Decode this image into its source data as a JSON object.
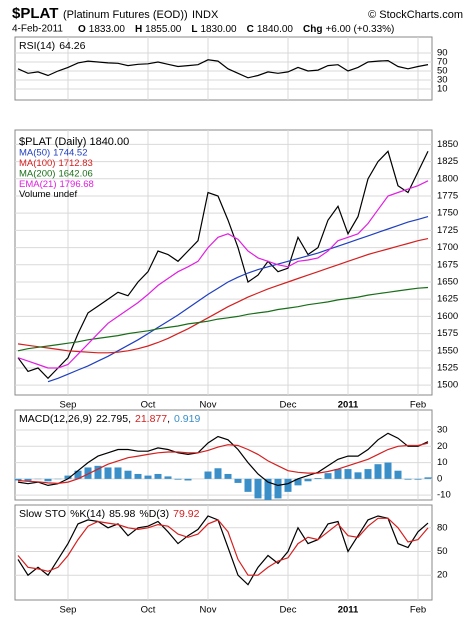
{
  "header": {
    "title": "$PLAT",
    "subtitle": "(Platinum Futures (EOD))",
    "exchange": "INDX",
    "copyright": "© StockCharts.com",
    "date": "4-Feb-2011",
    "quote": [
      {
        "label": "O",
        "value": "1833.00"
      },
      {
        "label": "H",
        "value": "1855.00"
      },
      {
        "label": "L",
        "value": "1830.00"
      },
      {
        "label": "C",
        "value": "1840.00"
      },
      {
        "label": "Chg",
        "value": "+6.00 (+0.33%)"
      }
    ]
  },
  "chart_data": [
    {
      "type": "line",
      "ylim": [
        0,
        100
      ],
      "yticks": [
        10,
        30,
        50,
        70,
        90
      ],
      "grid": true,
      "series": [
        {
          "name": "RSI(14)",
          "legend_label": "64.26",
          "color": "#000000",
          "values": [
            55,
            45,
            48,
            40,
            50,
            58,
            68,
            72,
            70,
            68,
            67,
            62,
            65,
            66,
            70,
            65,
            60,
            62,
            64,
            75,
            72,
            55,
            45,
            35,
            40,
            48,
            45,
            48,
            58,
            50,
            52,
            62,
            64,
            50,
            58,
            70,
            72,
            73,
            60,
            55,
            60,
            64.26
          ]
        }
      ]
    },
    {
      "type": "line",
      "ylim": [
        1485,
        1868
      ],
      "yticks": [
        1500,
        1525,
        1550,
        1575,
        1600,
        1625,
        1650,
        1675,
        1700,
        1725,
        1750,
        1775,
        1800,
        1825,
        1850
      ],
      "grid": true,
      "categories": [
        null,
        null,
        null,
        null,
        null,
        "Sep",
        null,
        null,
        null,
        null,
        null,
        null,
        null,
        "Oct",
        null,
        null,
        null,
        null,
        null,
        "Nov",
        null,
        null,
        null,
        null,
        null,
        null,
        null,
        "Dec",
        null,
        null,
        null,
        null,
        null,
        "2011",
        null,
        null,
        null,
        null,
        null,
        null,
        "Feb",
        null
      ],
      "annotation": "Volume undef",
      "series": [
        {
          "name": "$PLAT (Daily)",
          "legend_label": "1840.00",
          "color": "#000000",
          "values": [
            1540,
            1520,
            1525,
            1510,
            1525,
            1540,
            1575,
            1605,
            1615,
            1625,
            1635,
            1630,
            1650,
            1665,
            1695,
            1690,
            1680,
            1695,
            1710,
            1780,
            1775,
            1740,
            1700,
            1650,
            1660,
            1680,
            1665,
            1670,
            1715,
            1690,
            1700,
            1740,
            1760,
            1720,
            1745,
            1800,
            1825,
            1840,
            1790,
            1780,
            1810,
            1840
          ]
        },
        {
          "name": "MA(50)",
          "legend_label": "1744.52",
          "color": "#1f3fbf",
          "values": [
            null,
            null,
            null,
            1505,
            1510,
            1516,
            1522,
            1528,
            1535,
            1542,
            1550,
            1558,
            1566,
            1575,
            1584,
            1593,
            1602,
            1612,
            1622,
            1632,
            1641,
            1650,
            1657,
            1663,
            1668,
            1672,
            1676,
            1680,
            1684,
            1688,
            1692,
            1697,
            1702,
            1707,
            1712,
            1717,
            1722,
            1727,
            1732,
            1737,
            1741,
            1745
          ]
        },
        {
          "name": "MA(100)",
          "legend_label": "1712.83",
          "color": "#d42020",
          "values": [
            1560,
            1558,
            1556,
            1554,
            1552,
            1550,
            1549,
            1548,
            1547,
            1547,
            1548,
            1550,
            1553,
            1557,
            1562,
            1568,
            1575,
            1582,
            1590,
            1598,
            1606,
            1614,
            1621,
            1628,
            1634,
            1640,
            1645,
            1650,
            1655,
            1660,
            1665,
            1670,
            1675,
            1680,
            1685,
            1690,
            1694,
            1698,
            1702,
            1706,
            1710,
            1713
          ]
        },
        {
          "name": "MA(200)",
          "legend_label": "1642.06",
          "color": "#1a6e1a",
          "values": [
            1550,
            1553,
            1555,
            1557,
            1559,
            1561,
            1563,
            1566,
            1568,
            1570,
            1572,
            1575,
            1577,
            1579,
            1582,
            1584,
            1586,
            1589,
            1591,
            1593,
            1596,
            1598,
            1600,
            1603,
            1605,
            1607,
            1610,
            1612,
            1614,
            1617,
            1619,
            1621,
            1624,
            1626,
            1628,
            1631,
            1633,
            1635,
            1637,
            1639,
            1641,
            1642
          ]
        },
        {
          "name": "EMA(21)",
          "legend_label": "1796.68",
          "color": "#e020e0",
          "values": [
            1540,
            1535,
            1530,
            1525,
            1525,
            1530,
            1545,
            1560,
            1575,
            1590,
            1600,
            1610,
            1620,
            1632,
            1645,
            1655,
            1665,
            1672,
            1680,
            1700,
            1715,
            1720,
            1712,
            1695,
            1685,
            1680,
            1675,
            1672,
            1680,
            1682,
            1685,
            1695,
            1710,
            1715,
            1720,
            1735,
            1755,
            1775,
            1780,
            1785,
            1790,
            1797
          ]
        }
      ]
    },
    {
      "type": "line",
      "ylim": [
        -13,
        38
      ],
      "yticks": [
        -10,
        0,
        10,
        20,
        30
      ],
      "grid": true,
      "series": [
        {
          "name": "MACD(12,26,9)",
          "type": "bar",
          "legend_label": "0.919",
          "color": "#3a8fc8",
          "values": [
            -1,
            -1.5,
            -0.2,
            -1.5,
            -0.2,
            2,
            5,
            7,
            8,
            7,
            7,
            5,
            3,
            2,
            3,
            1.5,
            -0.5,
            -1,
            0,
            4.5,
            6.5,
            3,
            -2.5,
            -8,
            -12,
            -13,
            -12,
            -8,
            -4,
            -1.5,
            0.5,
            3.5,
            6,
            6,
            4,
            6,
            9,
            10,
            5,
            -0.5,
            -0.5,
            0.919
          ]
        },
        {
          "name": "",
          "legend_label": "22.795",
          "color": "#000000",
          "values": [
            -2,
            -3,
            -2,
            -4,
            -3,
            0,
            5,
            10,
            14,
            16,
            18,
            18,
            17,
            17,
            19,
            18,
            16,
            15,
            16,
            22,
            26,
            24,
            18,
            10,
            3,
            -2,
            -4,
            -3,
            0,
            2,
            4,
            8,
            12,
            14,
            14,
            18,
            24,
            28,
            25,
            20,
            20,
            22.795
          ]
        },
        {
          "name": "",
          "legend_label": "21.877",
          "color": "#d42020",
          "values": [
            -1,
            -1.5,
            -1.8,
            -2.5,
            -2.8,
            -2,
            0,
            3,
            6,
            9,
            11,
            13,
            14,
            15,
            16,
            16.5,
            16.5,
            16,
            16,
            17.5,
            19.5,
            21,
            20.5,
            18,
            15,
            11,
            8,
            5,
            4,
            3.5,
            3.5,
            4.5,
            6,
            8,
            10,
            12,
            15,
            18,
            20,
            20.5,
            20.5,
            21.877
          ]
        }
      ]
    },
    {
      "type": "line",
      "title": "Slow STO",
      "ylim": [
        0,
        100
      ],
      "yticks": [
        20,
        50,
        80
      ],
      "grid": true,
      "categories": [
        null,
        null,
        null,
        null,
        null,
        "Sep",
        null,
        null,
        null,
        null,
        null,
        null,
        null,
        "Oct",
        null,
        null,
        null,
        null,
        null,
        "Nov",
        null,
        null,
        null,
        null,
        null,
        null,
        null,
        "Dec",
        null,
        null,
        null,
        null,
        null,
        "2011",
        null,
        null,
        null,
        null,
        null,
        null,
        "Feb",
        null
      ],
      "series": [
        {
          "name": "%K(14)",
          "legend_label": "85.98",
          "color": "#000000",
          "values": [
            40,
            20,
            30,
            20,
            40,
            60,
            85,
            90,
            88,
            80,
            85,
            70,
            80,
            82,
            88,
            75,
            60,
            70,
            78,
            95,
            90,
            55,
            20,
            8,
            30,
            45,
            35,
            50,
            80,
            60,
            65,
            85,
            88,
            50,
            70,
            90,
            95,
            92,
            60,
            55,
            75,
            85.98
          ]
        },
        {
          "name": "%D(3)",
          "legend_label": "79.92",
          "color": "#d42020",
          "values": [
            45,
            30,
            28,
            25,
            30,
            45,
            65,
            82,
            88,
            86,
            84,
            80,
            78,
            80,
            84,
            82,
            72,
            68,
            72,
            85,
            90,
            75,
            40,
            20,
            20,
            30,
            38,
            42,
            60,
            68,
            65,
            75,
            85,
            70,
            68,
            82,
            92,
            92,
            80,
            62,
            65,
            79.92
          ]
        }
      ]
    }
  ]
}
